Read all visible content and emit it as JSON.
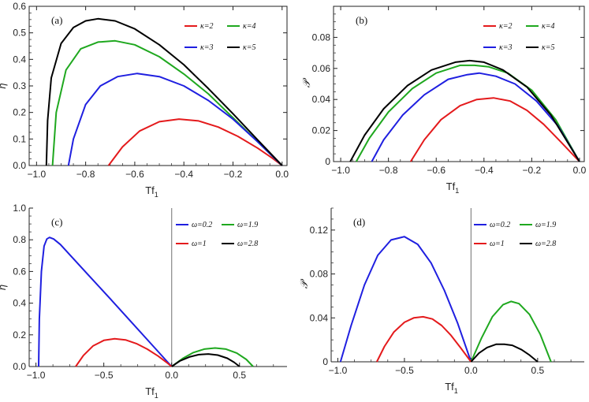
{
  "chart_data": [
    {
      "panel": "(a)",
      "type": "line",
      "xlabel": "Tf",
      "xlabel_sub": "1",
      "ylabel": "η",
      "xlim": [
        -1.03,
        0.02
      ],
      "ylim": [
        0,
        0.6
      ],
      "xticks": [
        -1.0,
        -0.8,
        -0.6,
        -0.4,
        -0.2,
        0.0
      ],
      "xticklabels": [
        "−1.0",
        "−0.8",
        "−0.6",
        "−0.4",
        "−0.2",
        "0.0"
      ],
      "yticks": [
        0,
        0.1,
        0.2,
        0.3,
        0.4,
        0.5,
        0.6
      ],
      "yticklabels": [
        "0.0",
        "0.1",
        "0.2",
        "0.3",
        "0.4",
        "0.5",
        "0.6"
      ],
      "legend": "top-right",
      "series": [
        {
          "name": "κ=2",
          "color": "#e41a1c",
          "x": [
            -0.707,
            -0.65,
            -0.58,
            -0.5,
            -0.42,
            -0.34,
            -0.26,
            -0.18,
            -0.1,
            -0.04,
            0.0
          ],
          "y": [
            0.0,
            0.07,
            0.13,
            0.165,
            0.175,
            0.168,
            0.145,
            0.11,
            0.066,
            0.028,
            0.0
          ]
        },
        {
          "name": "κ=4",
          "color": "#1fa81f",
          "x": [
            -0.935,
            -0.92,
            -0.88,
            -0.82,
            -0.75,
            -0.68,
            -0.6,
            -0.5,
            -0.4,
            -0.3,
            -0.2,
            -0.1,
            0.0
          ],
          "y": [
            0.0,
            0.2,
            0.36,
            0.44,
            0.465,
            0.47,
            0.455,
            0.41,
            0.345,
            0.27,
            0.18,
            0.09,
            0.0
          ]
        },
        {
          "name": "κ=3",
          "color": "#1f1fe0",
          "x": [
            -0.87,
            -0.85,
            -0.8,
            -0.74,
            -0.67,
            -0.59,
            -0.5,
            -0.4,
            -0.3,
            -0.2,
            -0.1,
            0.0
          ],
          "y": [
            0.0,
            0.1,
            0.23,
            0.3,
            0.335,
            0.347,
            0.335,
            0.3,
            0.245,
            0.175,
            0.09,
            0.0
          ]
        },
        {
          "name": "κ=5",
          "color": "#000000",
          "x": [
            -0.96,
            -0.955,
            -0.94,
            -0.9,
            -0.85,
            -0.8,
            -0.75,
            -0.68,
            -0.6,
            -0.5,
            -0.4,
            -0.3,
            -0.2,
            -0.1,
            0.0
          ],
          "y": [
            0.0,
            0.17,
            0.33,
            0.46,
            0.52,
            0.545,
            0.553,
            0.545,
            0.515,
            0.455,
            0.38,
            0.29,
            0.195,
            0.097,
            0.0
          ]
        }
      ],
      "legend_order": [
        0,
        1,
        2,
        3
      ]
    },
    {
      "panel": "(b)",
      "type": "line",
      "xlabel": "Tf",
      "xlabel_sub": "1",
      "ylabel": "𝒫",
      "xlim": [
        -1.03,
        0.02
      ],
      "ylim": [
        0,
        0.1
      ],
      "xticks": [
        -1.0,
        -0.8,
        -0.6,
        -0.4,
        -0.2,
        0.0
      ],
      "xticklabels": [
        "−1.0",
        "−0.8",
        "−0.6",
        "−0.4",
        "−0.2",
        "0.0"
      ],
      "yticks": [
        0,
        0.02,
        0.04,
        0.06,
        0.08
      ],
      "yticklabels": [
        "0",
        "0.02",
        "0.04",
        "0.06",
        "0.08"
      ],
      "legend": "top-right",
      "series": [
        {
          "name": "κ=2",
          "color": "#e41a1c",
          "x": [
            -0.707,
            -0.65,
            -0.58,
            -0.5,
            -0.43,
            -0.36,
            -0.29,
            -0.22,
            -0.15,
            -0.08,
            0.0
          ],
          "y": [
            0.0,
            0.014,
            0.027,
            0.036,
            0.04,
            0.041,
            0.039,
            0.033,
            0.024,
            0.013,
            0.0
          ]
        },
        {
          "name": "κ=4",
          "color": "#1fa81f",
          "x": [
            -0.935,
            -0.88,
            -0.8,
            -0.7,
            -0.6,
            -0.5,
            -0.44,
            -0.38,
            -0.3,
            -0.2,
            -0.1,
            0.0
          ],
          "y": [
            0.0,
            0.015,
            0.032,
            0.047,
            0.057,
            0.062,
            0.062,
            0.061,
            0.057,
            0.046,
            0.027,
            0.0
          ]
        },
        {
          "name": "κ=3",
          "color": "#1f1fe0",
          "x": [
            -0.87,
            -0.82,
            -0.74,
            -0.65,
            -0.55,
            -0.47,
            -0.42,
            -0.35,
            -0.27,
            -0.18,
            -0.09,
            0.0
          ],
          "y": [
            0.0,
            0.014,
            0.03,
            0.043,
            0.053,
            0.056,
            0.057,
            0.055,
            0.05,
            0.039,
            0.023,
            0.0
          ]
        },
        {
          "name": "κ=5",
          "color": "#000000",
          "x": [
            -0.96,
            -0.9,
            -0.82,
            -0.72,
            -0.62,
            -0.52,
            -0.46,
            -0.4,
            -0.32,
            -0.22,
            -0.12,
            0.0
          ],
          "y": [
            0.0,
            0.017,
            0.034,
            0.049,
            0.059,
            0.064,
            0.065,
            0.064,
            0.059,
            0.048,
            0.03,
            0.0
          ]
        }
      ],
      "legend_order": [
        0,
        1,
        2,
        3
      ]
    },
    {
      "panel": "(c)",
      "type": "line",
      "xlabel": "Tf",
      "xlabel_sub": "1",
      "ylabel": "η",
      "xlim": [
        -1.05,
        0.85
      ],
      "ylim": [
        0,
        1.0
      ],
      "xticks": [
        -1.0,
        -0.5,
        0.0,
        0.5
      ],
      "xticklabels": [
        "−1.0",
        "−0.5",
        "0.0",
        "0.5"
      ],
      "yticks": [
        0,
        0.2,
        0.4,
        0.6,
        0.8,
        1.0
      ],
      "yticklabels": [
        "0.0",
        "0.2",
        "0.4",
        "0.6",
        "0.8",
        "1.0"
      ],
      "vline_x": 0.0,
      "legend": "top-right",
      "series": [
        {
          "name": "ω=0.2",
          "color": "#1f1fe0",
          "x": [
            -0.98,
            -0.975,
            -0.96,
            -0.94,
            -0.92,
            -0.9,
            -0.87,
            -0.82,
            -0.75,
            -0.6,
            -0.45,
            -0.3,
            -0.15,
            0.0
          ],
          "y": [
            0.0,
            0.3,
            0.6,
            0.76,
            0.805,
            0.815,
            0.805,
            0.77,
            0.705,
            0.565,
            0.425,
            0.283,
            0.142,
            0.0
          ]
        },
        {
          "name": "ω=1.9",
          "color": "#1fa81f",
          "x": [
            0.0,
            0.08,
            0.16,
            0.24,
            0.32,
            0.4,
            0.48,
            0.55,
            0.6
          ],
          "y": [
            0.0,
            0.05,
            0.088,
            0.11,
            0.117,
            0.11,
            0.085,
            0.045,
            0.0
          ]
        },
        {
          "name": "ω=1",
          "color": "#e41a1c",
          "x": [
            -0.707,
            -0.65,
            -0.58,
            -0.5,
            -0.42,
            -0.34,
            -0.26,
            -0.18,
            -0.1,
            -0.04,
            0.0
          ],
          "y": [
            0.0,
            0.07,
            0.13,
            0.165,
            0.175,
            0.168,
            0.145,
            0.11,
            0.066,
            0.028,
            0.0
          ]
        },
        {
          "name": "ω=2.8",
          "color": "#000000",
          "x": [
            0.0,
            0.06,
            0.13,
            0.2,
            0.27,
            0.34,
            0.41,
            0.46,
            0.5
          ],
          "y": [
            0.0,
            0.035,
            0.06,
            0.075,
            0.079,
            0.072,
            0.052,
            0.027,
            0.0
          ]
        }
      ],
      "legend_order": [
        0,
        1,
        2,
        3
      ]
    },
    {
      "panel": "(d)",
      "type": "line",
      "xlabel": "Tf",
      "xlabel_sub": "1",
      "ylabel": "𝒫",
      "xlim": [
        -1.05,
        0.85
      ],
      "ylim": [
        0,
        0.14
      ],
      "xticks": [
        -1.0,
        -0.5,
        0.0,
        0.5
      ],
      "xticklabels": [
        "−1.0",
        "−0.5",
        "0.0",
        "0.5"
      ],
      "yticks": [
        0,
        0.04,
        0.08,
        0.12
      ],
      "yticklabels": [
        "0",
        "0.04",
        "0.08",
        "0.12"
      ],
      "vline_x": 0.0,
      "legend": "top-right",
      "series": [
        {
          "name": "ω=0.2",
          "color": "#1f1fe0",
          "x": [
            -0.98,
            -0.9,
            -0.8,
            -0.7,
            -0.6,
            -0.5,
            -0.4,
            -0.3,
            -0.2,
            -0.1,
            0.0
          ],
          "y": [
            0.0,
            0.033,
            0.07,
            0.097,
            0.111,
            0.114,
            0.107,
            0.09,
            0.065,
            0.035,
            0.0
          ]
        },
        {
          "name": "ω=1.9",
          "color": "#1fa81f",
          "x": [
            0.0,
            0.08,
            0.16,
            0.24,
            0.3,
            0.36,
            0.44,
            0.52,
            0.6
          ],
          "y": [
            0.0,
            0.022,
            0.041,
            0.052,
            0.055,
            0.053,
            0.043,
            0.025,
            0.0
          ]
        },
        {
          "name": "ω=1",
          "color": "#e41a1c",
          "x": [
            -0.707,
            -0.65,
            -0.58,
            -0.5,
            -0.43,
            -0.36,
            -0.29,
            -0.22,
            -0.15,
            -0.08,
            0.0
          ],
          "y": [
            0.0,
            0.014,
            0.027,
            0.036,
            0.04,
            0.041,
            0.039,
            0.033,
            0.024,
            0.013,
            0.0
          ]
        },
        {
          "name": "ω=2.8",
          "color": "#000000",
          "x": [
            0.0,
            0.06,
            0.12,
            0.19,
            0.25,
            0.31,
            0.38,
            0.44,
            0.5
          ],
          "y": [
            0.0,
            0.008,
            0.013,
            0.016,
            0.016,
            0.015,
            0.011,
            0.006,
            0.0
          ]
        }
      ],
      "legend_order": [
        0,
        1,
        2,
        3
      ]
    }
  ]
}
